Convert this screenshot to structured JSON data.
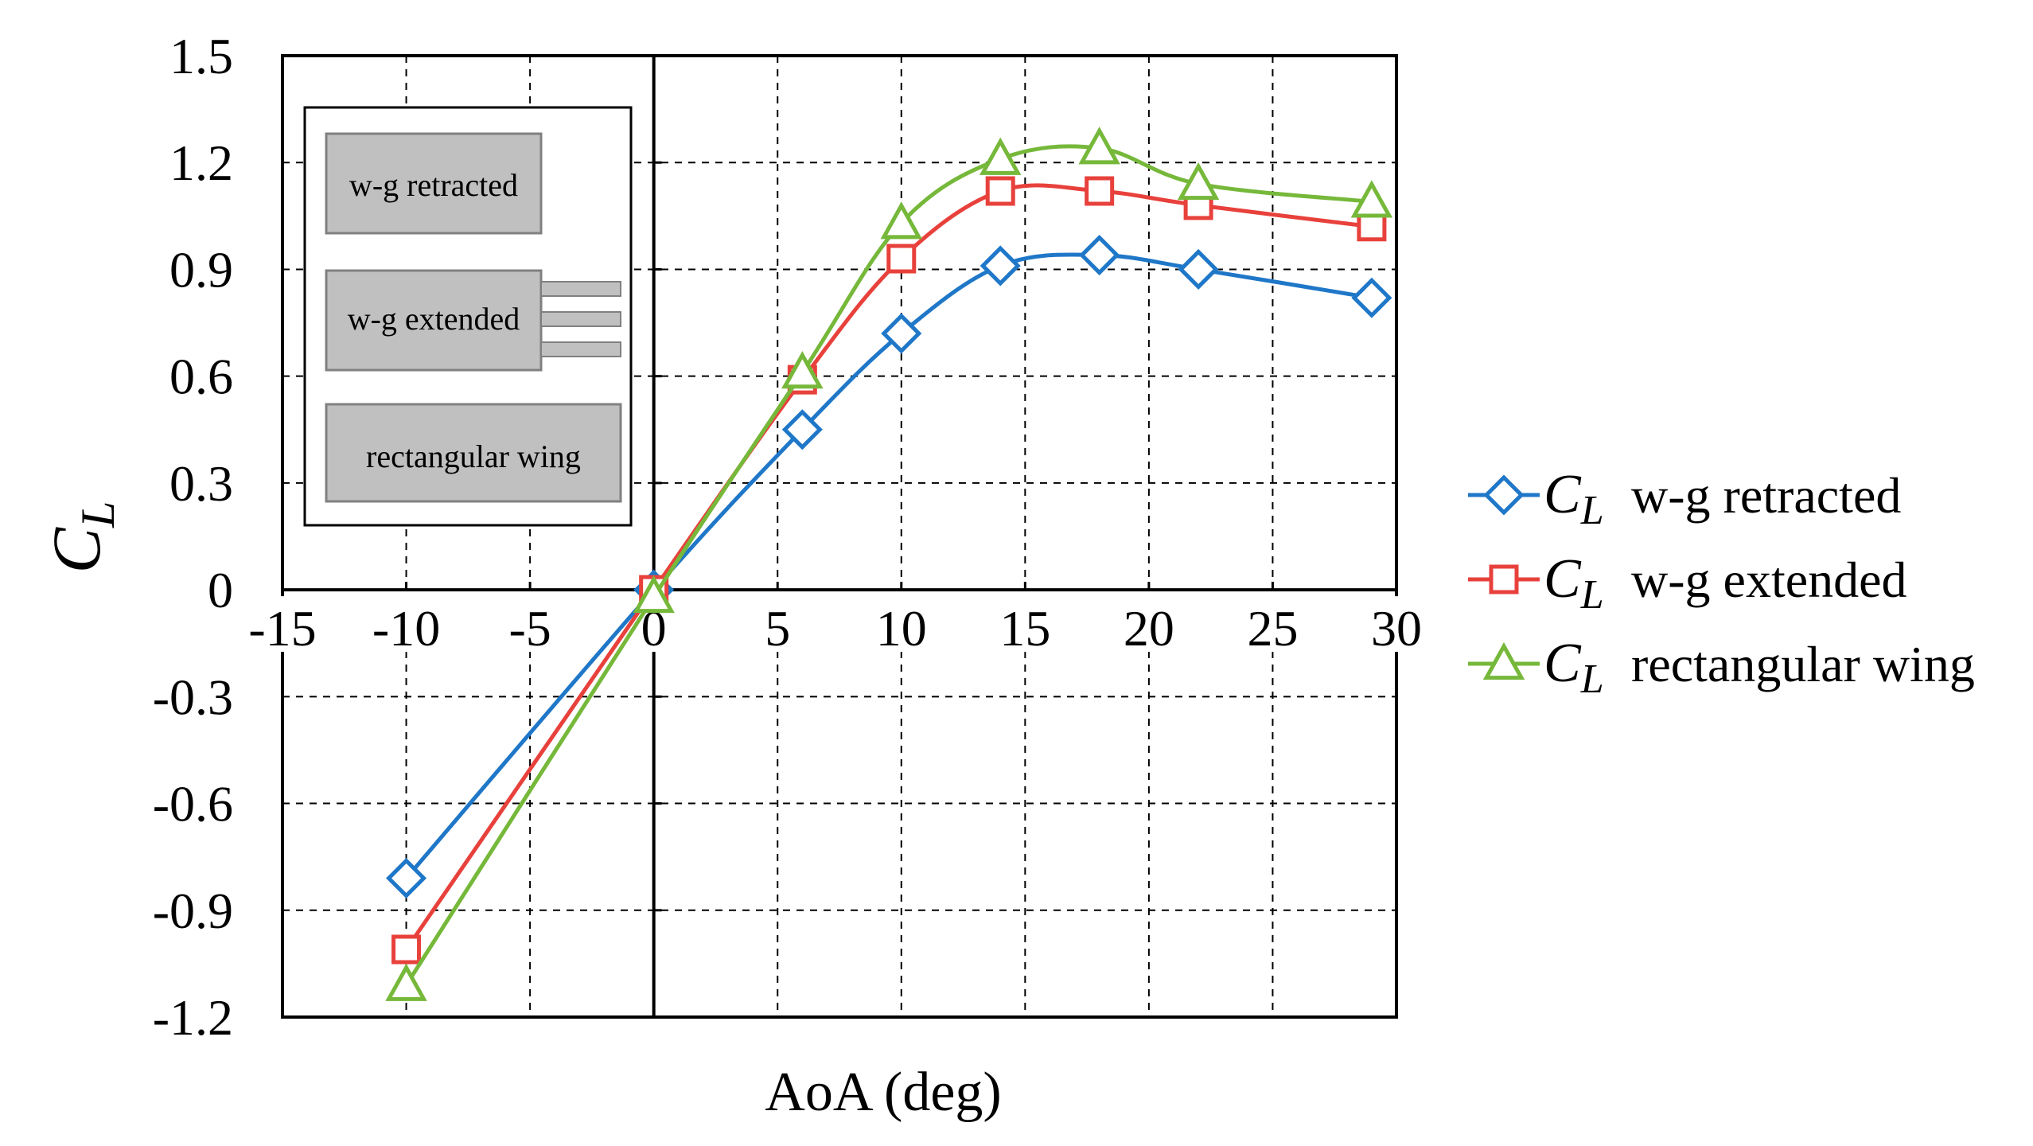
{
  "chart_data": {
    "type": "line",
    "title": "",
    "xlabel": "AoA (deg)",
    "ylabel": {
      "symbol": "C",
      "subscript": "L"
    },
    "xlim": [
      -15,
      30
    ],
    "ylim": [
      -1.2,
      1.5
    ],
    "xticks": [
      -15,
      -10,
      -5,
      0,
      5,
      10,
      15,
      20,
      25,
      30
    ],
    "xtick_labels": [
      "-15",
      "-10",
      "-5",
      "0",
      "5",
      "10",
      "15",
      "20",
      "25",
      "30"
    ],
    "yticks": [
      1.5,
      1.2,
      0.9,
      0.6,
      0.3,
      0,
      -0.3,
      -0.6,
      -0.9,
      -1.2
    ],
    "ytick_labels": [
      "1.5",
      "1.2",
      "0.9",
      "0.6",
      "0.3",
      "0",
      "-0.3",
      "-0.6",
      "-0.9",
      "-1.2"
    ],
    "grid": true,
    "legend_position": "right",
    "x": [
      -10,
      0,
      6,
      10,
      14,
      18,
      22,
      29
    ],
    "series": [
      {
        "name": "w-g retracted",
        "symbol": "C",
        "subscript": "L",
        "marker": "diamond",
        "color": "#1f77c8",
        "values": [
          -0.81,
          0.0,
          0.45,
          0.72,
          0.91,
          0.94,
          0.9,
          0.82
        ]
      },
      {
        "name": "w-g extended",
        "symbol": "C",
        "subscript": "L",
        "marker": "square",
        "color": "#e8413c",
        "values": [
          -1.01,
          0.0,
          0.59,
          0.93,
          1.12,
          1.12,
          1.08,
          1.02
        ]
      },
      {
        "name": "rectangular wing",
        "symbol": "C",
        "subscript": "L",
        "marker": "triangle",
        "color": "#76b83a",
        "values": [
          -1.11,
          -0.02,
          0.61,
          1.03,
          1.21,
          1.24,
          1.14,
          1.09
        ]
      }
    ],
    "inset": {
      "labels": [
        "w-g retracted",
        "w-g extended",
        "rectangular wing"
      ]
    }
  }
}
